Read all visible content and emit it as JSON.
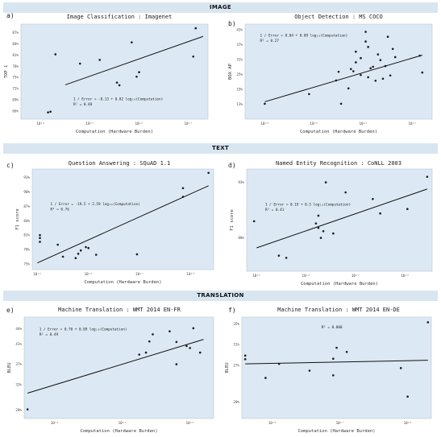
{
  "sections": [
    "IMAGE",
    "TEXT",
    "TRANSLATION"
  ],
  "chart_data": [
    {
      "type": "scatter",
      "panel_label": "a)",
      "title": "Image Classification : Imagenet",
      "xlabel": "Computation (Hardware Burden)",
      "ylabel": "TOP 1",
      "xscale": "log",
      "xlim": [
        13.6,
        17.4
      ],
      "ylim": [
        63.8,
        89.3
      ],
      "xticks": [
        14,
        15,
        16,
        17
      ],
      "xtick_labels": [
        "10¹⁴",
        "10¹⁵",
        "10¹⁶",
        "10¹⁷"
      ],
      "yticks": [
        66,
        69,
        72,
        75,
        78,
        81,
        84,
        87
      ],
      "ytick_labels": [
        "66%",
        "69%",
        "72%",
        "75%",
        "78%",
        "81%",
        "84%",
        "87%"
      ],
      "annotation": [
        "1 / Error = -0.13 + 0.82 log₁₀(Computation)",
        "R² = 0.48"
      ],
      "annotation_position": "lower-middle",
      "points": [
        {
          "x": 14.15,
          "y": 65.6
        },
        {
          "x": 14.2,
          "y": 65.8
        },
        {
          "x": 14.3,
          "y": 81.2
        },
        {
          "x": 14.8,
          "y": 78.7
        },
        {
          "x": 15.2,
          "y": 79.7
        },
        {
          "x": 15.55,
          "y": 73.6
        },
        {
          "x": 15.6,
          "y": 72.9
        },
        {
          "x": 15.85,
          "y": 84.4
        },
        {
          "x": 15.95,
          "y": 75.2
        },
        {
          "x": 16.0,
          "y": 76.4
        },
        {
          "x": 17.1,
          "y": 80.6
        },
        {
          "x": 17.15,
          "y": 88.2
        }
      ],
      "fit": {
        "x": [
          14.5,
          17.3
        ],
        "y": [
          73.0,
          86.0
        ]
      }
    },
    {
      "type": "scatter",
      "panel_label": "b)",
      "title": "Object Detection : MS COCO",
      "xlabel": "Computation (Hardware Burden)",
      "ylabel": "BOX AP",
      "xscale": "log",
      "xlim": [
        13.6,
        17.4
      ],
      "ylim": [
        7.0,
        45.3
      ],
      "xticks": [
        14,
        15,
        16,
        17
      ],
      "xtick_labels": [
        "10¹⁴",
        "10¹⁵",
        "10¹⁶",
        "10¹⁷"
      ],
      "yticks": [
        13,
        19,
        25,
        31,
        37,
        43
      ],
      "ytick_labels": [
        "13%",
        "19%",
        "25%",
        "31%",
        "37%",
        "43%"
      ],
      "annotation": [
        "1 / Error = 0.04 + 0.09 log₁₀(Computation)",
        "R² = 0.27"
      ],
      "annotation_position": "top-left",
      "points": [
        {
          "x": 14.0,
          "y": 13.2
        },
        {
          "x": 14.9,
          "y": 17.1
        },
        {
          "x": 15.45,
          "y": 22.6
        },
        {
          "x": 15.5,
          "y": 26.1
        },
        {
          "x": 15.55,
          "y": 13.2
        },
        {
          "x": 15.7,
          "y": 19.4
        },
        {
          "x": 15.75,
          "y": 27.2
        },
        {
          "x": 15.8,
          "y": 26.3
        },
        {
          "x": 15.85,
          "y": 29.9
        },
        {
          "x": 15.85,
          "y": 34.2
        },
        {
          "x": 15.95,
          "y": 24.8
        },
        {
          "x": 15.95,
          "y": 31.6
        },
        {
          "x": 16.05,
          "y": 42.2
        },
        {
          "x": 16.05,
          "y": 38.3
        },
        {
          "x": 16.1,
          "y": 36.1
        },
        {
          "x": 16.1,
          "y": 23.9
        },
        {
          "x": 16.15,
          "y": 27.5
        },
        {
          "x": 16.2,
          "y": 28.1
        },
        {
          "x": 16.25,
          "y": 22.5
        },
        {
          "x": 16.3,
          "y": 33.1
        },
        {
          "x": 16.35,
          "y": 30.8
        },
        {
          "x": 16.4,
          "y": 23.3
        },
        {
          "x": 16.45,
          "y": 28.4
        },
        {
          "x": 16.5,
          "y": 40.2
        },
        {
          "x": 16.55,
          "y": 24.6
        },
        {
          "x": 16.6,
          "y": 35.3
        },
        {
          "x": 16.65,
          "y": 32.0
        },
        {
          "x": 17.15,
          "y": 32.6
        },
        {
          "x": 17.2,
          "y": 25.8
        }
      ],
      "fit": {
        "x": [
          14.0,
          17.2
        ],
        "y": [
          14.0,
          32.8
        ]
      }
    },
    {
      "type": "scatter",
      "panel_label": "c)",
      "title": "Question Answering : SQuAD 1.1",
      "xlabel": "Computation (Hardware Burden)",
      "ylabel": "F1 score",
      "xscale": "log",
      "xlim": [
        14.9,
        18.45
      ],
      "ylim": [
        73.8,
        94.8
      ],
      "xticks": [
        15,
        16,
        17,
        18
      ],
      "xtick_labels": [
        "10¹⁵",
        "10¹⁶",
        "10¹⁷",
        "10¹⁸"
      ],
      "yticks": [
        75,
        78,
        81,
        84,
        87,
        90,
        93
      ],
      "ytick_labels": [
        "75%",
        "78%",
        "81%",
        "84%",
        "87%",
        "90%",
        "93%"
      ],
      "annotation": [
        "1 / Error = -19.5 + 2.59 log₁₀(Computation)",
        "R² = 0.76"
      ],
      "annotation_position": "middle-left",
      "points": [
        {
          "x": 15.05,
          "y": 79.6
        },
        {
          "x": 15.05,
          "y": 80.4
        },
        {
          "x": 15.05,
          "y": 81.0
        },
        {
          "x": 15.4,
          "y": 79.0
        },
        {
          "x": 15.5,
          "y": 76.5
        },
        {
          "x": 15.75,
          "y": 76.2
        },
        {
          "x": 15.8,
          "y": 77.1
        },
        {
          "x": 15.85,
          "y": 77.8
        },
        {
          "x": 15.95,
          "y": 78.5
        },
        {
          "x": 16.0,
          "y": 78.3
        },
        {
          "x": 16.15,
          "y": 76.9
        },
        {
          "x": 16.95,
          "y": 77.0
        },
        {
          "x": 17.85,
          "y": 89.0
        },
        {
          "x": 17.85,
          "y": 90.8
        },
        {
          "x": 18.35,
          "y": 94.0
        }
      ],
      "fit": {
        "x": [
          15.0,
          18.35
        ],
        "y": [
          75.2,
          91.3
        ]
      }
    },
    {
      "type": "scatter",
      "panel_label": "d)",
      "title": "Named Entity Recognition : CoNLL 2003",
      "xlabel": "Computation (Hardware Burden)",
      "ylabel": "F1 score",
      "xscale": "log",
      "xlim": [
        14.8,
        18.55
      ],
      "ylim": [
        85.0,
        94.2
      ],
      "xticks": [
        15,
        16,
        17,
        18
      ],
      "xtick_labels": [
        "10¹⁵",
        "10¹⁶",
        "10¹⁷",
        "10¹⁸"
      ],
      "yticks": [
        88,
        93
      ],
      "ytick_labels": [
        "88%",
        "93%"
      ],
      "annotation": [
        "1 / Error = 0.19 + 0.5 log₁₀(Computation)",
        "R² = 0.41"
      ],
      "annotation_position": "middle-left",
      "points": [
        {
          "x": 14.95,
          "y": 89.5
        },
        {
          "x": 15.45,
          "y": 86.4
        },
        {
          "x": 15.6,
          "y": 86.2
        },
        {
          "x": 16.2,
          "y": 89.3
        },
        {
          "x": 16.25,
          "y": 90.0
        },
        {
          "x": 16.25,
          "y": 88.9
        },
        {
          "x": 16.3,
          "y": 88.0
        },
        {
          "x": 16.35,
          "y": 88.6
        },
        {
          "x": 16.4,
          "y": 93.0
        },
        {
          "x": 16.55,
          "y": 88.4
        },
        {
          "x": 16.8,
          "y": 92.1
        },
        {
          "x": 17.35,
          "y": 91.5
        },
        {
          "x": 17.5,
          "y": 90.2
        },
        {
          "x": 18.05,
          "y": 90.6
        },
        {
          "x": 18.45,
          "y": 93.5
        }
      ],
      "fit": {
        "x": [
          15.0,
          18.45
        ],
        "y": [
          87.1,
          92.4
        ]
      }
    },
    {
      "type": "scatter",
      "panel_label": "e)",
      "title": "Machine Translation : WMT 2014 EN-FR",
      "xlabel": "Computation (Hardware Burden)",
      "ylabel": "BLEU",
      "xscale": "log",
      "xlim": [
        15.55,
        18.35
      ],
      "ylim": [
        26.3,
        46.3
      ],
      "xticks": [
        16,
        17,
        18
      ],
      "xtick_labels": [
        "10¹⁶",
        "10¹⁷",
        "10¹⁸"
      ],
      "yticks": [
        28,
        33,
        37,
        41,
        44
      ],
      "ytick_labels": [
        "28%",
        "33%",
        "37%",
        "41%",
        "44%"
      ],
      "annotation": [
        "1 / Error = 0.70 + 0.09 log₁₀(Computation)",
        "R² = 0.49"
      ],
      "annotation_position": "top-left",
      "points": [
        {
          "x": 15.6,
          "y": 28.1
        },
        {
          "x": 17.25,
          "y": 38.9
        },
        {
          "x": 17.35,
          "y": 39.3
        },
        {
          "x": 17.4,
          "y": 41.5
        },
        {
          "x": 17.45,
          "y": 42.9
        },
        {
          "x": 17.7,
          "y": 43.5
        },
        {
          "x": 17.8,
          "y": 41.4
        },
        {
          "x": 17.8,
          "y": 37.0
        },
        {
          "x": 17.95,
          "y": 40.6
        },
        {
          "x": 18.0,
          "y": 40.2
        },
        {
          "x": 18.05,
          "y": 44.1
        },
        {
          "x": 18.15,
          "y": 39.3
        }
      ],
      "fit": {
        "x": [
          15.6,
          18.2
        ],
        "y": [
          31.3,
          41.9
        ]
      }
    },
    {
      "type": "scatter",
      "panel_label": "f)",
      "title": "Machine Translation : WMT 2014 EN-DE",
      "xlabel": "Computation (Hardware Burden)",
      "ylabel": "BLEU",
      "xscale": "log",
      "xlim": [
        15.55,
        18.35
      ],
      "ylim": [
        16.8,
        36.3
      ],
      "xticks": [
        16,
        17,
        18
      ],
      "xtick_labels": [
        "10¹⁶",
        "10¹⁷",
        "10¹⁸"
      ],
      "yticks": [
        20,
        27,
        31,
        35
      ],
      "ytick_labels": [
        "20%",
        "27%",
        "31%",
        "35%"
      ],
      "annotation": [
        "R² = 0.008"
      ],
      "annotation_position": "top-middle",
      "points": [
        {
          "x": 15.6,
          "y": 28.9
        },
        {
          "x": 15.6,
          "y": 28.2
        },
        {
          "x": 15.9,
          "y": 24.6
        },
        {
          "x": 16.1,
          "y": 27.3
        },
        {
          "x": 16.55,
          "y": 26.0
        },
        {
          "x": 16.9,
          "y": 25.1
        },
        {
          "x": 16.9,
          "y": 28.3
        },
        {
          "x": 16.95,
          "y": 30.4
        },
        {
          "x": 17.1,
          "y": 29.6
        },
        {
          "x": 17.9,
          "y": 26.5
        },
        {
          "x": 18.0,
          "y": 21.0
        },
        {
          "x": 18.3,
          "y": 35.3
        }
      ],
      "fit": {
        "x": [
          15.6,
          18.3
        ],
        "y": [
          27.3,
          28.0
        ]
      }
    }
  ]
}
